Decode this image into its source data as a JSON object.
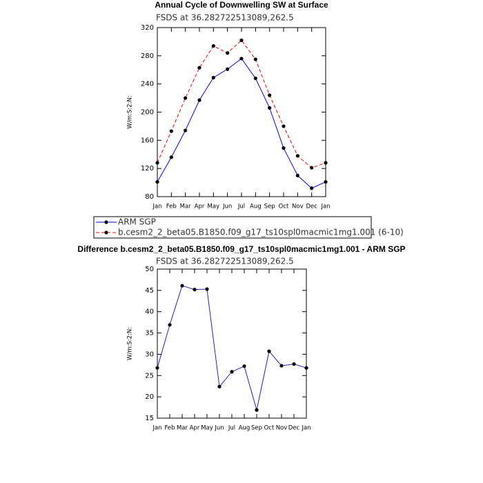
{
  "chart_data": [
    {
      "type": "line",
      "title": "Annual Cycle of Downwelling SW at Surface",
      "subtitle": "FSDS at 36.282722513089,262.5",
      "ylabel": "W/m:S:2:N:",
      "categories": [
        "Jan",
        "Feb",
        "Mar",
        "Apr",
        "May",
        "Jun",
        "Jul",
        "Aug",
        "Sep",
        "Oct",
        "Nov",
        "Dec",
        "Jan"
      ],
      "series": [
        {
          "name": "ARM SGP",
          "color": "#0000ff",
          "linestyle": "solid",
          "values": [
            101,
            136,
            174,
            217,
            249,
            261,
            276,
            248,
            206,
            149,
            110,
            92,
            101
          ]
        },
        {
          "name": "b.cesm2_2_beta05.B1850.f09_g17_ts10spl0macmic1mg1.001 (6-10)",
          "color": "#ff0000",
          "linestyle": "dashed",
          "values": [
            128,
            173,
            220,
            263,
            294,
            284,
            302,
            275,
            224,
            180,
            138,
            121,
            128
          ]
        }
      ],
      "ylim": [
        80,
        320
      ],
      "yticks": [
        80,
        120,
        160,
        200,
        240,
        280,
        320
      ],
      "legend": "bottom"
    },
    {
      "type": "line",
      "title": "Difference b.cesm2_2_beta05.B1850.f09_g17_ts10spl0macmic1mg1.001 - ARM SGP",
      "subtitle": "FSDS at 36.282722513089,262.5",
      "ylabel": "W/m:S:2:N:",
      "categories": [
        "Jan",
        "Feb",
        "Mar",
        "Apr",
        "May",
        "Jun",
        "Jul",
        "Aug",
        "Sep",
        "Oct",
        "Nov",
        "Dec",
        "Jan"
      ],
      "series": [
        {
          "color": "#2020d0",
          "linestyle": "solid",
          "values": [
            26.8,
            36.9,
            46.1,
            45.2,
            45.3,
            22.4,
            25.9,
            27.2,
            16.9,
            30.7,
            27.3,
            27.7,
            26.8
          ]
        }
      ],
      "ylim": [
        15,
        50
      ],
      "yticks": [
        15,
        20,
        25,
        30,
        35,
        40,
        45,
        50
      ]
    }
  ]
}
